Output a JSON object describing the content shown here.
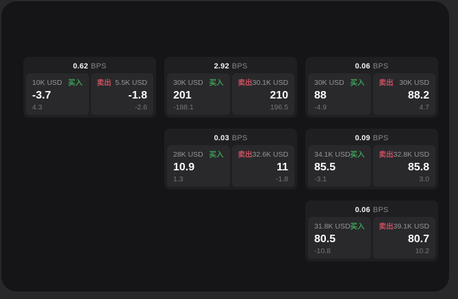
{
  "colors": {
    "buy_accent": "#3f9e57",
    "sell_accent": "#c95062",
    "page_background": "#28282b",
    "panel_background": "#151517",
    "card_background": "#1f1f21",
    "tile_background": "#29292b"
  },
  "labels": {
    "bps_suffix": "BPS",
    "buy": "买入",
    "sell": "卖出"
  },
  "cards": [
    {
      "bps": "0.62",
      "row": 0,
      "col": 0,
      "buy": {
        "size": "10K USD",
        "price": "-3.7",
        "delta": "4.3"
      },
      "sell": {
        "size": "5.5K USD",
        "price": "-1.8",
        "delta": "-2.6"
      }
    },
    {
      "bps": "2.92",
      "row": 0,
      "col": 1,
      "buy": {
        "size": "30K USD",
        "price": "201",
        "delta": "-188.1"
      },
      "sell": {
        "size": "30.1K USD",
        "price": "210",
        "delta": "196.5"
      }
    },
    {
      "bps": "0.06",
      "row": 0,
      "col": 2,
      "buy": {
        "size": "30K USD",
        "price": "88",
        "delta": "-4.9"
      },
      "sell": {
        "size": "30K USD",
        "price": "88.2",
        "delta": "4.7"
      }
    },
    {
      "bps": "0.03",
      "row": 1,
      "col": 1,
      "buy": {
        "size": "28K USD",
        "price": "10.9",
        "delta": "1.3"
      },
      "sell": {
        "size": "32.6K USD",
        "price": "11",
        "delta": "-1.8"
      }
    },
    {
      "bps": "0.09",
      "row": 1,
      "col": 2,
      "buy": {
        "size": "34.1K USD",
        "price": "85.5",
        "delta": "-3.1"
      },
      "sell": {
        "size": "32.8K USD",
        "price": "85.8",
        "delta": "3.0"
      }
    },
    {
      "bps": "0.06",
      "row": 2,
      "col": 2,
      "buy": {
        "size": "31.8K USD",
        "price": "80.5",
        "delta": "-10.8"
      },
      "sell": {
        "size": "39.1K USD",
        "price": "80.7",
        "delta": "10.2"
      }
    }
  ]
}
